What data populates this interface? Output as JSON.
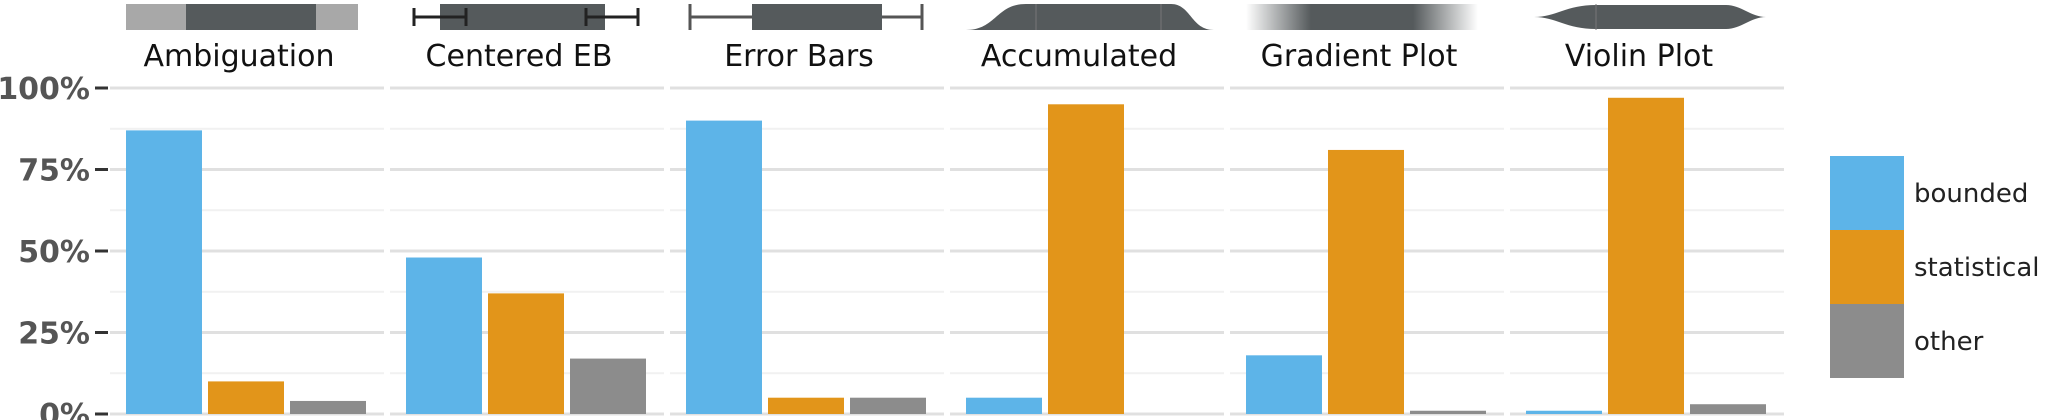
{
  "chart_data": {
    "type": "bar",
    "categories": [
      "bounded",
      "statistical",
      "other"
    ],
    "ylim": [
      0,
      100
    ],
    "ytick_values": [
      0,
      25,
      50,
      75,
      100
    ],
    "ytick_labels": [
      "0%",
      "25%",
      "50%",
      "75%",
      "100%"
    ],
    "xlabel": "",
    "ylabel": "",
    "grid": true,
    "legend_position": "right",
    "colors": {
      "bounded": "#5db4e8",
      "statistical": "#e2951a",
      "other": "#8c8c8c"
    },
    "panels": [
      {
        "title": "Ambiguation",
        "values": [
          87,
          10,
          4
        ],
        "icon": "ambiguation-glyph"
      },
      {
        "title": "Centered EB",
        "values": [
          48,
          37,
          17
        ],
        "icon": "centered-error-bar-glyph"
      },
      {
        "title": "Error Bars",
        "values": [
          90,
          5,
          5
        ],
        "icon": "error-bar-glyph"
      },
      {
        "title": "Accumulated",
        "values": [
          5,
          95,
          0
        ],
        "icon": "accumulated-density-glyph"
      },
      {
        "title": "Gradient Plot",
        "values": [
          18,
          81,
          1
        ],
        "icon": "gradient-glyph"
      },
      {
        "title": "Violin Plot",
        "values": [
          1,
          97,
          3
        ],
        "icon": "violin-glyph"
      }
    ],
    "legend": [
      "bounded",
      "statistical",
      "other"
    ]
  }
}
